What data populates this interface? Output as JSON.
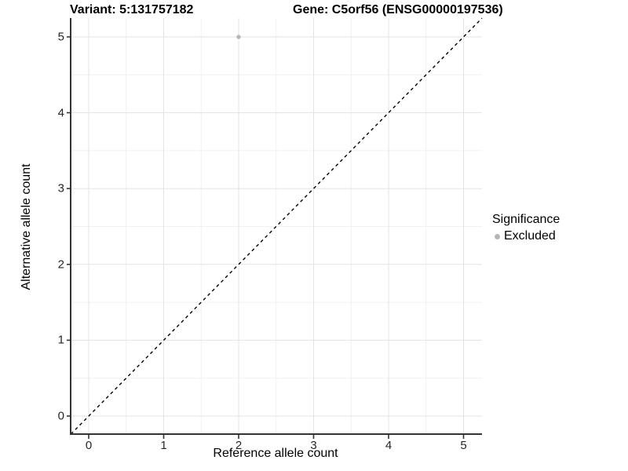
{
  "figure": {
    "title_left": "Variant: 5:131757182",
    "title_right": "Gene: C5orf56 (ENSG00000197536)"
  },
  "chart_data": {
    "type": "scatter",
    "title": "Variant: 5:131757182   Gene: C5orf56 (ENSG00000197536)",
    "xlabel": "Reference allele count",
    "ylabel": "Alternative allele count",
    "xlim": [
      -0.25,
      5.25
    ],
    "ylim": [
      -0.25,
      5.25
    ],
    "x_ticks": [
      0,
      1,
      2,
      3,
      4,
      5
    ],
    "y_ticks": [
      0,
      1,
      2,
      3,
      4,
      5
    ],
    "grid": "major and minor gridlines on",
    "points": [
      {
        "x": 2,
        "y": 5,
        "series": "Excluded"
      }
    ],
    "reference_line": {
      "kind": "identity y=x",
      "style": "dashed",
      "color": "#000000"
    },
    "legend": {
      "title": "Significance",
      "position": "right",
      "items": [
        {
          "label": "Excluded",
          "color": "#b5b5b5"
        }
      ]
    },
    "colors": {
      "point": "#b5b5b5",
      "grid_major": "#e3e3e3",
      "grid_minor": "#f1f1f1",
      "axis_line": "#333333",
      "background": "#ffffff"
    }
  }
}
